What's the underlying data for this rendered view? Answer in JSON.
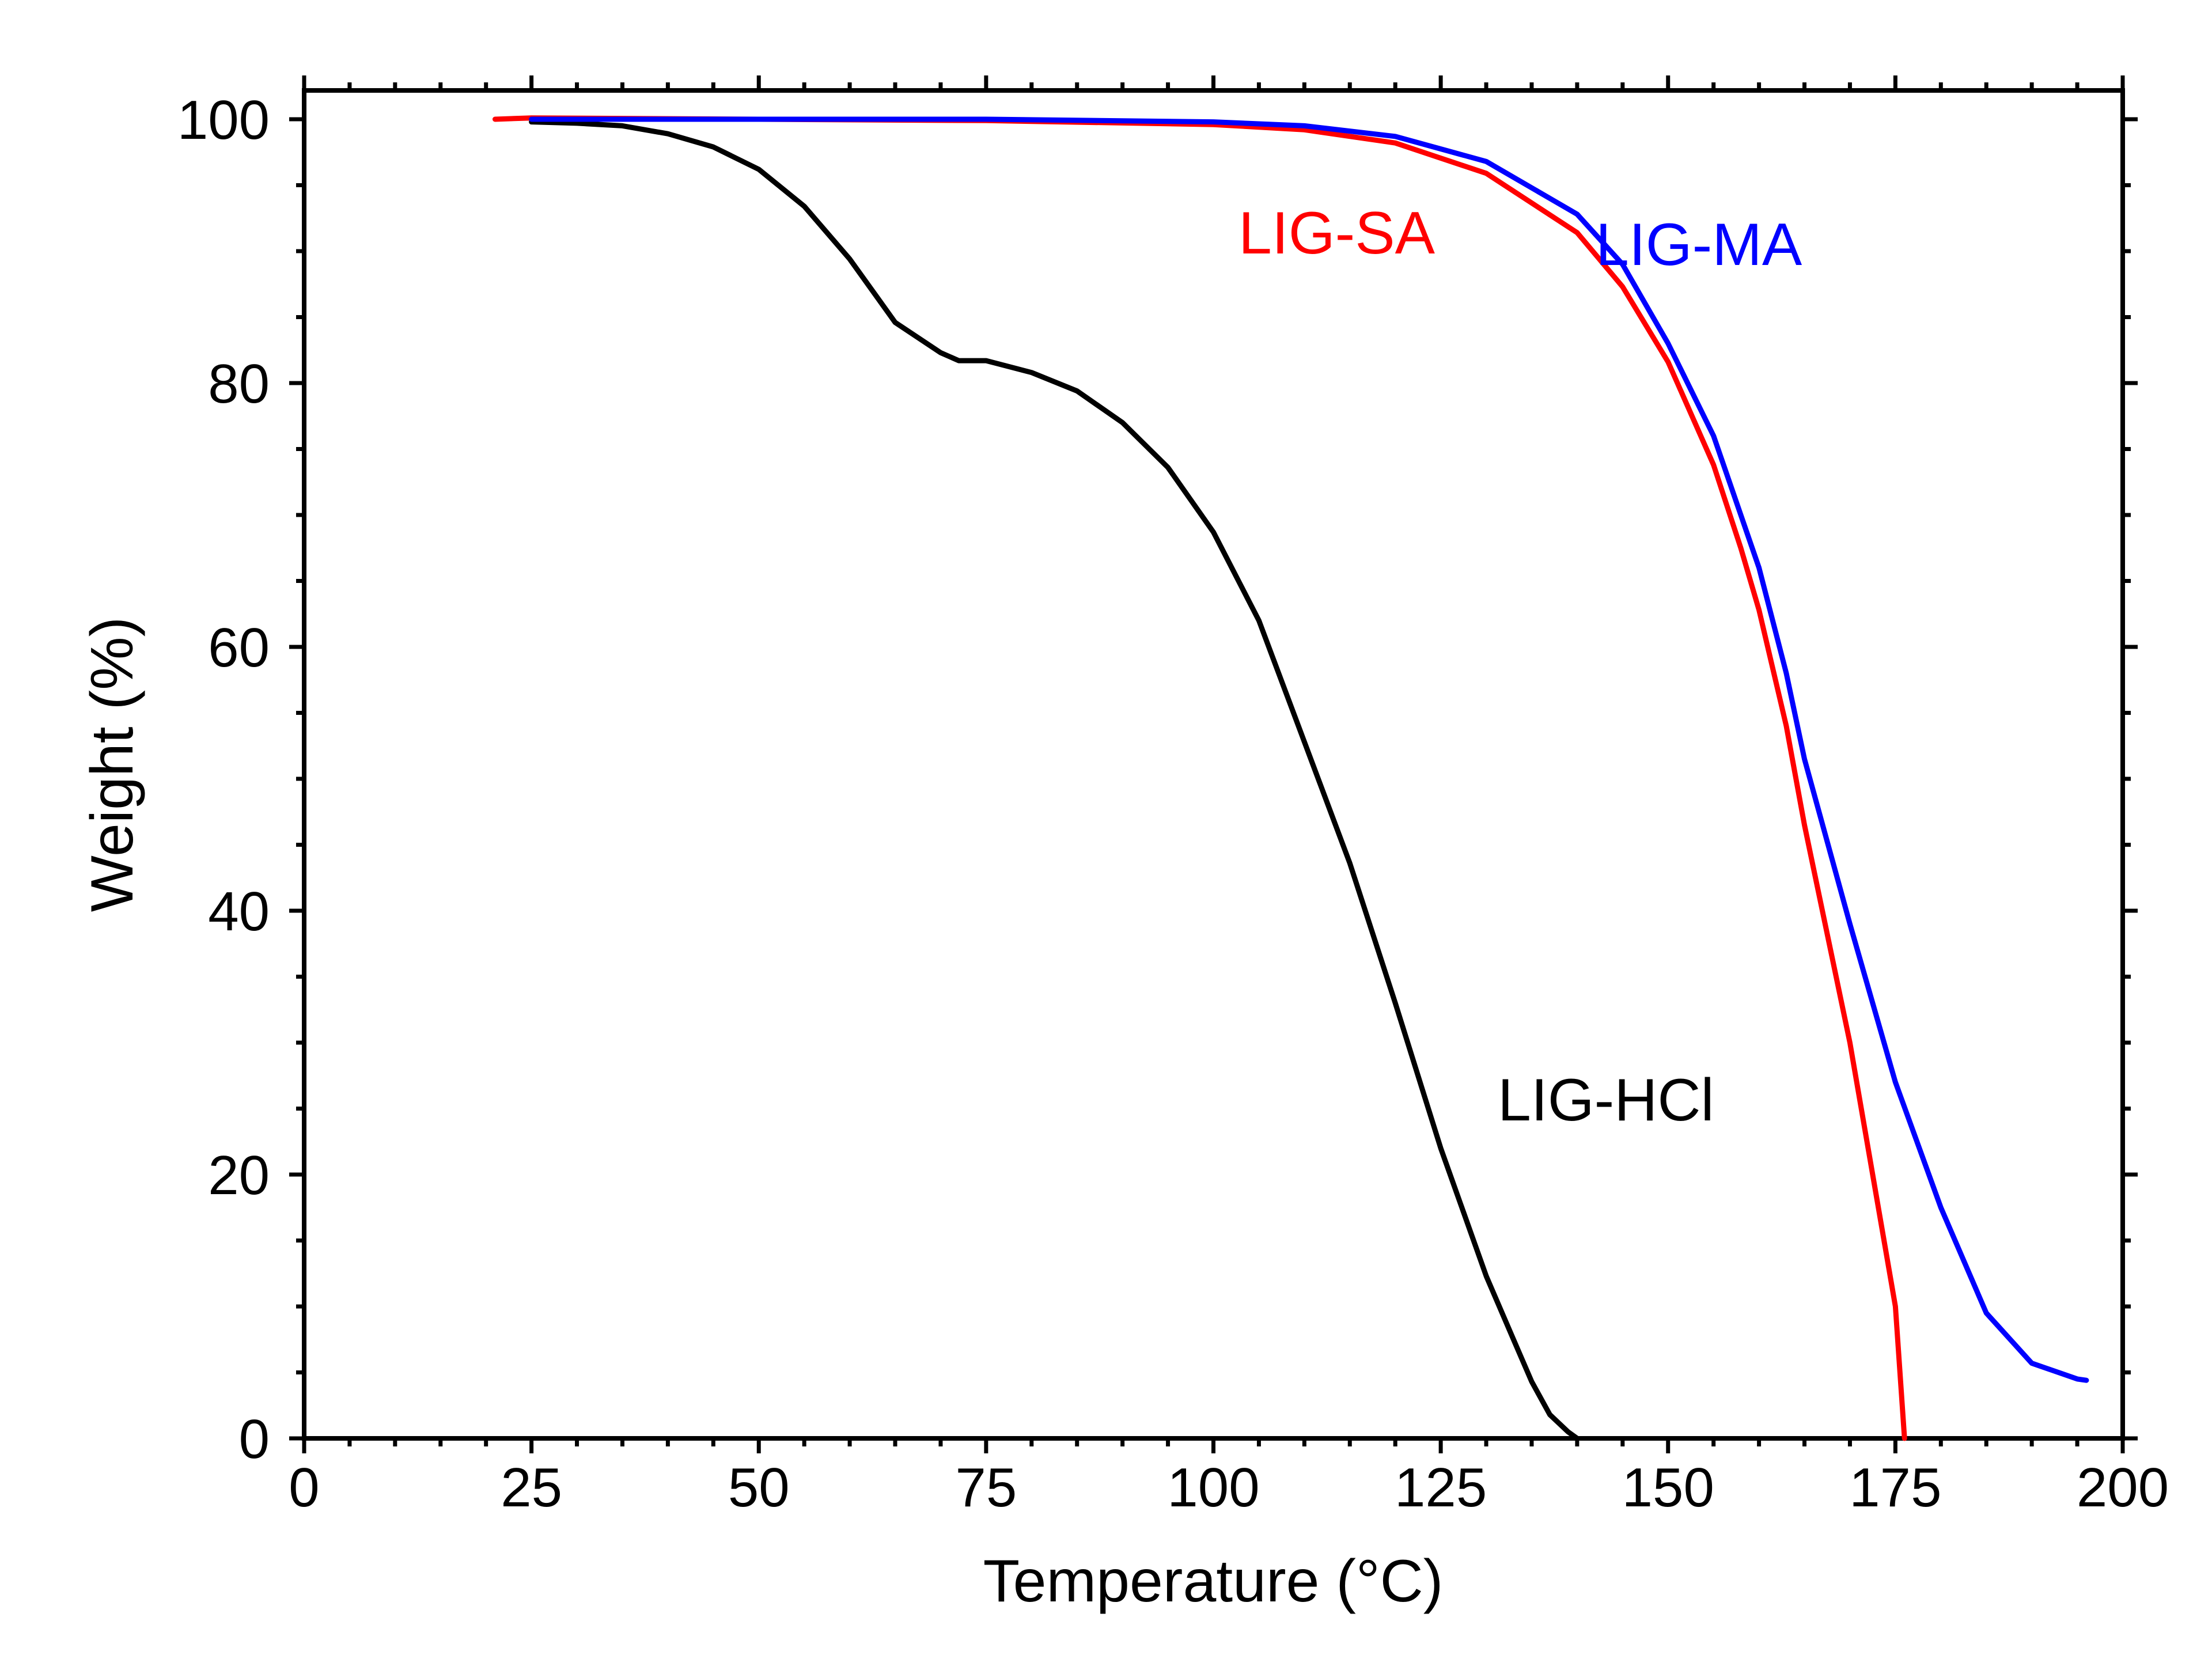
{
  "chart_data": {
    "type": "line",
    "title": "",
    "xlabel": "Temperature (°C)",
    "ylabel": "Weight (%)",
    "xlim": [
      0,
      200
    ],
    "ylim": [
      0,
      102
    ],
    "x_ticks": [
      "0",
      "25",
      "50",
      "75",
      "100",
      "125",
      "150",
      "175",
      "200"
    ],
    "y_ticks": [
      "0",
      "20",
      "40",
      "60",
      "80",
      "100"
    ],
    "grid": false,
    "legend": "none",
    "series": [
      {
        "name": "LIG-HCl",
        "color": "#000000",
        "x": [
          25,
          30,
          35,
          40,
          45,
          50,
          55,
          60,
          65,
          70,
          72,
          75,
          80,
          85,
          90,
          95,
          100,
          105,
          110,
          115,
          120,
          125,
          130,
          133,
          135,
          137,
          139,
          140
        ],
        "y": [
          99.8,
          99.7,
          99.5,
          98.9,
          97.9,
          96.2,
          93.4,
          89.4,
          84.6,
          82.3,
          81.7,
          81.7,
          80.8,
          79.4,
          77.0,
          73.6,
          68.7,
          62.0,
          52.8,
          43.6,
          33.0,
          22.0,
          12.3,
          7.5,
          4.3,
          1.8,
          0.5,
          0.0
        ]
      },
      {
        "name": "LIG-SA",
        "color": "#ff0000",
        "x": [
          21,
          25,
          50,
          75,
          100,
          110,
          120,
          130,
          140,
          145,
          150,
          155,
          158,
          160,
          163,
          165,
          170,
          175,
          176
        ],
        "y": [
          100.0,
          100.1,
          100.0,
          99.9,
          99.6,
          99.2,
          98.2,
          95.9,
          91.4,
          87.3,
          81.6,
          73.8,
          67.5,
          62.8,
          54.0,
          46.5,
          30.0,
          10.0,
          0.0
        ]
      },
      {
        "name": "LIG-MA",
        "color": "#0000ff",
        "x": [
          25,
          50,
          75,
          100,
          110,
          120,
          130,
          140,
          145,
          150,
          155,
          160,
          163,
          165,
          170,
          175,
          180,
          185,
          190,
          195,
          196
        ],
        "y": [
          100.0,
          100.0,
          100.0,
          99.8,
          99.5,
          98.7,
          96.8,
          92.8,
          89.0,
          83.0,
          76.0,
          66.0,
          58.0,
          51.5,
          39.0,
          27.0,
          17.5,
          9.5,
          5.7,
          4.5,
          4.4
        ]
      }
    ]
  }
}
